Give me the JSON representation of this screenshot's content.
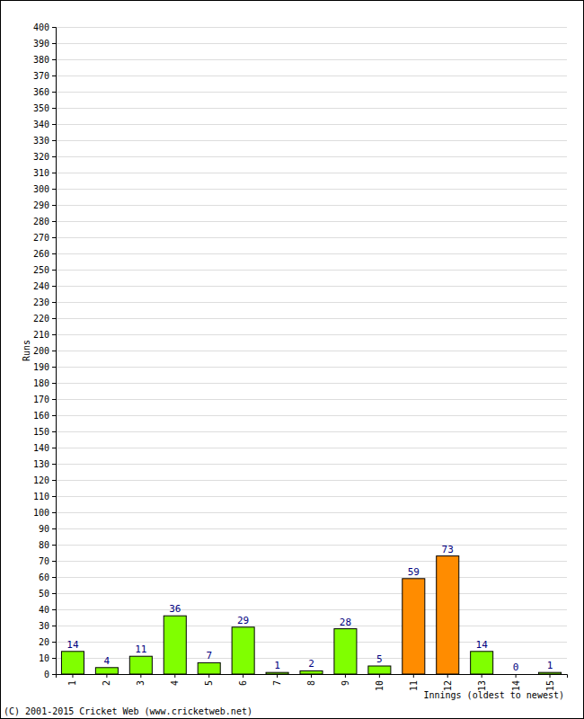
{
  "chart_data": {
    "type": "bar",
    "categories": [
      "1",
      "2",
      "3",
      "4",
      "5",
      "6",
      "7",
      "8",
      "9",
      "10",
      "11",
      "12",
      "13",
      "14",
      "15"
    ],
    "values": [
      14,
      4,
      11,
      36,
      7,
      29,
      1,
      2,
      28,
      5,
      59,
      73,
      14,
      0,
      1
    ],
    "colors": [
      "#80ff00",
      "#80ff00",
      "#80ff00",
      "#80ff00",
      "#80ff00",
      "#80ff00",
      "#80ff00",
      "#80ff00",
      "#80ff00",
      "#80ff00",
      "#ff8c00",
      "#ff8c00",
      "#80ff00",
      "#80ff00",
      "#80ff00"
    ],
    "ylim": [
      0,
      400
    ],
    "yticks": [
      0,
      10,
      20,
      30,
      40,
      50,
      60,
      70,
      80,
      90,
      100,
      110,
      120,
      130,
      140,
      150,
      160,
      170,
      180,
      190,
      200,
      210,
      220,
      230,
      240,
      250,
      260,
      270,
      280,
      290,
      300,
      310,
      320,
      330,
      340,
      350,
      360,
      370,
      380,
      390,
      400
    ],
    "grid": true,
    "data_labels": true,
    "x_label": "Innings (oldest to newest)",
    "y_label": "Runs",
    "annotation": "(C) 2001-2015 Cricket Web (www.cricketweb.net)"
  }
}
